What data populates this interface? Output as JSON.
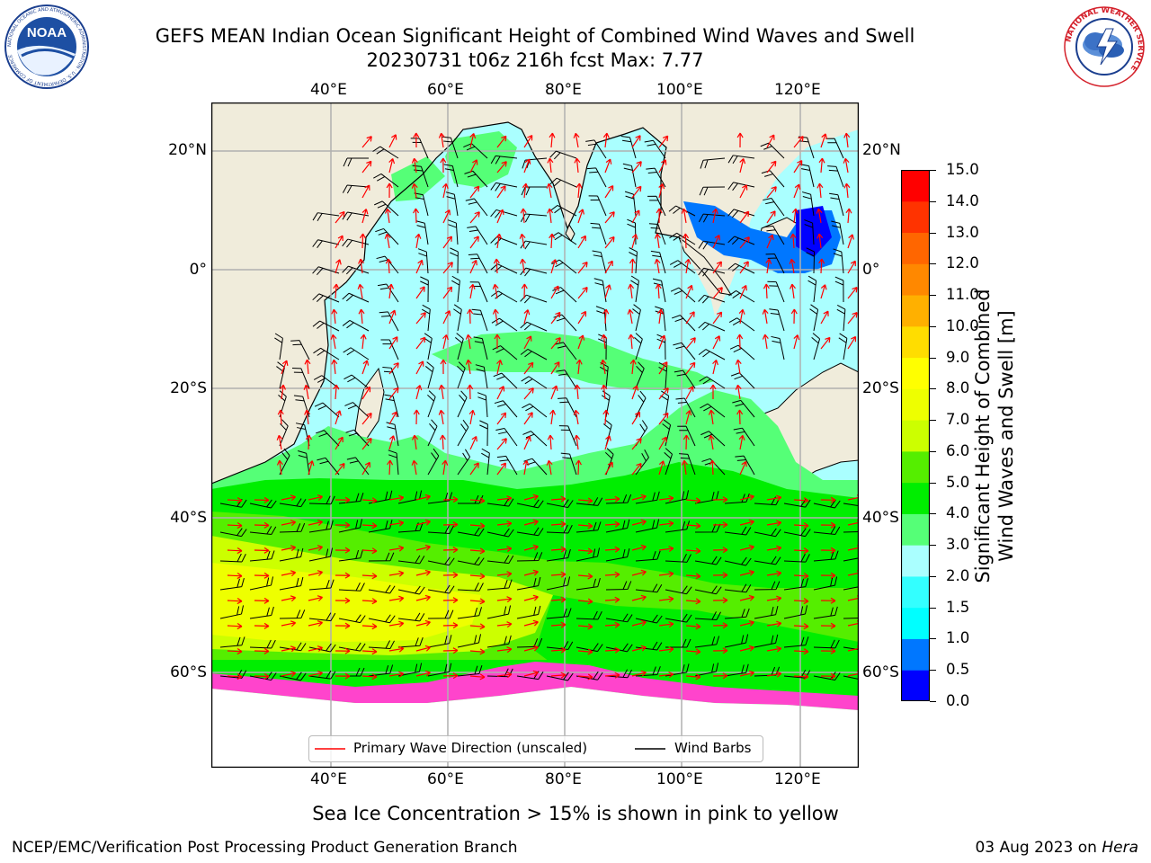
{
  "header": {
    "title_line1": "GEFS MEAN Indian Ocean Significant Height of Combined Wind Waves and Swell",
    "title_line2": "20230731 t06z 216h fcst   Max: 7.77"
  },
  "logos": {
    "left": {
      "name": "NOAA",
      "ring_text": "NATIONAL OCEANIC AND ATMOSPHERIC ADMINISTRATION · U.S. DEPARTMENT OF COMMERCE"
    },
    "right": {
      "ring_text": "NATIONAL WEATHER SERVICE"
    }
  },
  "map": {
    "lon_labels": [
      "40°E",
      "60°E",
      "80°E",
      "100°E",
      "120°E"
    ],
    "lat_labels_left": [
      "20°N",
      "0°",
      "20°S",
      "40°S",
      "60°S"
    ],
    "lat_labels_right": [
      "20°N",
      "0°",
      "20°S",
      "40°S",
      "60°S"
    ],
    "lon_range": [
      20,
      130
    ],
    "lat_range": [
      -70,
      28
    ],
    "gridlines": true
  },
  "colorbar": {
    "label_line1": "Significant Height of Combined",
    "label_line2": "Wind Waves and Swell [m]",
    "ticks": [
      "0.0",
      "0.5",
      "1.0",
      "1.5",
      "2.0",
      "3.0",
      "4.0",
      "5.0",
      "6.0",
      "7.0",
      "8.0",
      "9.0",
      "10.0",
      "11.0",
      "12.0",
      "13.0",
      "14.0",
      "15.0"
    ],
    "colors": [
      "#0000ff",
      "#0077ff",
      "#00ffff",
      "#33ffff",
      "#aaffff",
      "#55ff77",
      "#00ee00",
      "#55ee00",
      "#ccff00",
      "#eeff00",
      "#ffff00",
      "#ffdd00",
      "#ffb000",
      "#ff8800",
      "#ff6600",
      "#ff3300",
      "#ff0000"
    ]
  },
  "legend": {
    "wave_label": "Primary Wave Direction (unscaled)",
    "barb_label": "Wind Barbs"
  },
  "footer": {
    "ice_note": "Sea Ice Concentration > 15% is shown in pink to yellow",
    "producer": "NCEP/EMC/Verification Post Processing Product Generation Branch",
    "date": "03 Aug 2023 on ",
    "machine": "Hera"
  }
}
